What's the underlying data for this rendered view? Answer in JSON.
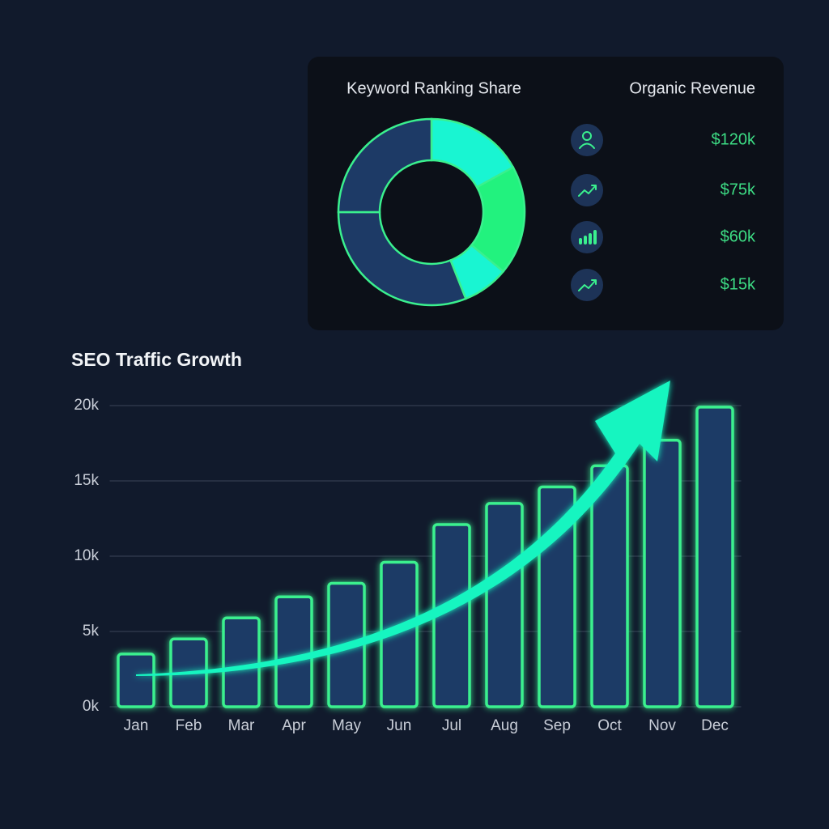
{
  "chart_data": [
    {
      "type": "donut",
      "title": "Keyword Ranking Share",
      "categories": [
        null,
        null,
        null,
        null,
        null
      ],
      "values": [
        17,
        19,
        8,
        31,
        25
      ],
      "colors": [
        "#19f5d2",
        "#22f27e",
        "#19f5d2",
        "#1d3a66",
        "#1d3a66"
      ],
      "edge_color": "#3af08e"
    },
    {
      "type": "bar",
      "title": "SEO Traffic Growth",
      "categories": [
        "Jan",
        "Feb",
        "Mar",
        "Apr",
        "May",
        "Jun",
        "Jul",
        "Aug",
        "Sep",
        "Oct",
        "Nov",
        "Dec"
      ],
      "values": [
        3500,
        4500,
        5900,
        7300,
        8200,
        9600,
        12100,
        13500,
        14600,
        16000,
        17700,
        19900
      ],
      "color": "#1d3a66",
      "edge_color": "#3af08e",
      "ylim": [
        0,
        20000
      ],
      "yticks": [
        {
          "value": 0,
          "label": "0k"
        },
        {
          "value": 5000,
          "label": "5k"
        },
        {
          "value": 10000,
          "label": "10k"
        },
        {
          "value": 15000,
          "label": "15k"
        },
        {
          "value": 20000,
          "label": "20k"
        }
      ],
      "grid": true
    }
  ],
  "revenue": {
    "title": "Organic Revenue",
    "items": [
      "$120k",
      "$75k",
      "$60k",
      "$15k"
    ]
  }
}
